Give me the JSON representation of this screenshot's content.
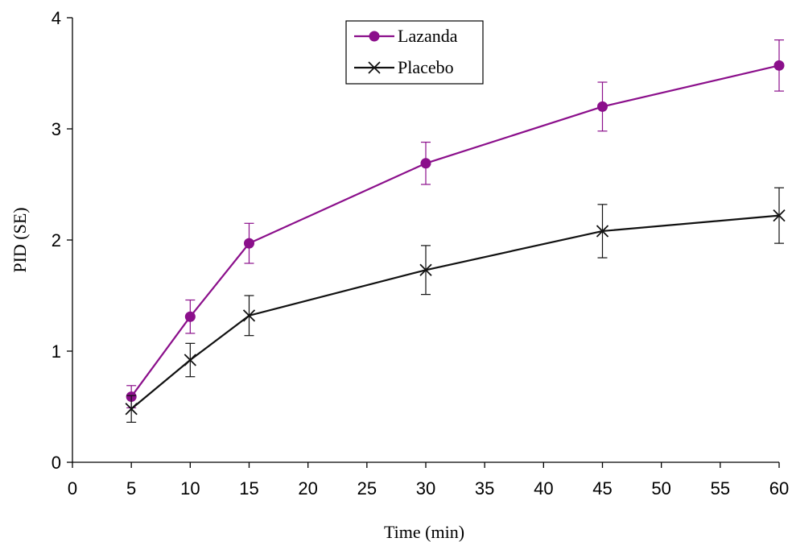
{
  "chart_data": {
    "type": "line",
    "title": "",
    "xlabel": "Time (min)",
    "ylabel": "PID (SE)",
    "xlim": [
      0,
      60
    ],
    "ylim": [
      0,
      4
    ],
    "x_ticks": [
      0,
      5,
      10,
      15,
      20,
      25,
      30,
      35,
      40,
      45,
      50,
      55,
      60
    ],
    "y_ticks": [
      0,
      1,
      2,
      3,
      4
    ],
    "grid": false,
    "legend_position": "top-center",
    "x": [
      5,
      10,
      15,
      30,
      45,
      60
    ],
    "series": [
      {
        "name": "Lazanda",
        "color": "#8b0f8b",
        "marker": "circle",
        "values": [
          0.59,
          1.31,
          1.97,
          2.69,
          3.2,
          3.57
        ],
        "error": [
          0.1,
          0.15,
          0.18,
          0.19,
          0.22,
          0.23
        ]
      },
      {
        "name": "Placebo",
        "color": "#111111",
        "marker": "x",
        "values": [
          0.48,
          0.92,
          1.32,
          1.73,
          2.08,
          2.22
        ],
        "error": [
          0.12,
          0.15,
          0.18,
          0.22,
          0.24,
          0.25
        ]
      }
    ]
  }
}
